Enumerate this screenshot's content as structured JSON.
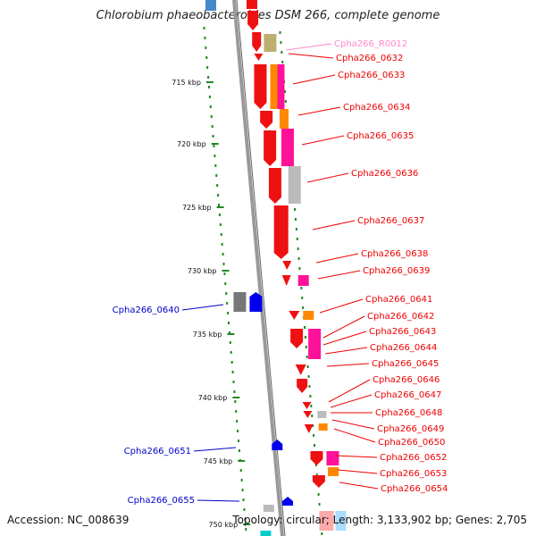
{
  "header": {
    "title": "Chlorobium phaeobacteroides DSM 266, complete genome"
  },
  "footer": {
    "accession": "Accession: NC_008639",
    "summary": "Topology: circular; Length: 3,133,902 bp; Genes: 2,705"
  },
  "colors": {
    "red": "#ee1111",
    "orange": "#ff8800",
    "magenta": "#ff1199",
    "gray": "#bbbbbb",
    "blue": "#0000ee",
    "backbone": "#999999"
  },
  "ruler": [
    "715 kbp",
    "720 kbp",
    "725 kbp",
    "730 kbp",
    "735 kbp",
    "740 kbp",
    "745 kbp",
    "750 kbp"
  ],
  "genes_right": [
    {
      "name": "Cpha266_R0012",
      "color": "#ff88cc"
    },
    {
      "name": "Cpha266_0632",
      "color": "#ee0000"
    },
    {
      "name": "Cpha266_0633",
      "color": "#ee0000"
    },
    {
      "name": "Cpha266_0634",
      "color": "#ee0000"
    },
    {
      "name": "Cpha266_0635",
      "color": "#ee0000"
    },
    {
      "name": "Cpha266_0636",
      "color": "#ee0000"
    },
    {
      "name": "Cpha266_0637",
      "color": "#ee0000"
    },
    {
      "name": "Cpha266_0638",
      "color": "#ee0000"
    },
    {
      "name": "Cpha266_0639",
      "color": "#ee0000"
    },
    {
      "name": "Cpha266_0641",
      "color": "#ee0000"
    },
    {
      "name": "Cpha266_0642",
      "color": "#ee0000"
    },
    {
      "name": "Cpha266_0643",
      "color": "#ee0000"
    },
    {
      "name": "Cpha266_0644",
      "color": "#ee0000"
    },
    {
      "name": "Cpha266_0645",
      "color": "#ee0000"
    },
    {
      "name": "Cpha266_0646",
      "color": "#ee0000"
    },
    {
      "name": "Cpha266_0647",
      "color": "#ee0000"
    },
    {
      "name": "Cpha266_0648",
      "color": "#ee0000"
    },
    {
      "name": "Cpha266_0649",
      "color": "#ee0000"
    },
    {
      "name": "Cpha266_0650",
      "color": "#ee0000"
    },
    {
      "name": "Cpha266_0652",
      "color": "#ee0000"
    },
    {
      "name": "Cpha266_0653",
      "color": "#ee0000"
    },
    {
      "name": "Cpha266_0654",
      "color": "#ee0000"
    }
  ],
  "genes_left": [
    {
      "name": "Cpha266_0640",
      "color": "#0000cc"
    },
    {
      "name": "Cpha266_0651",
      "color": "#0000cc"
    },
    {
      "name": "Cpha266_0655",
      "color": "#0000cc"
    }
  ]
}
